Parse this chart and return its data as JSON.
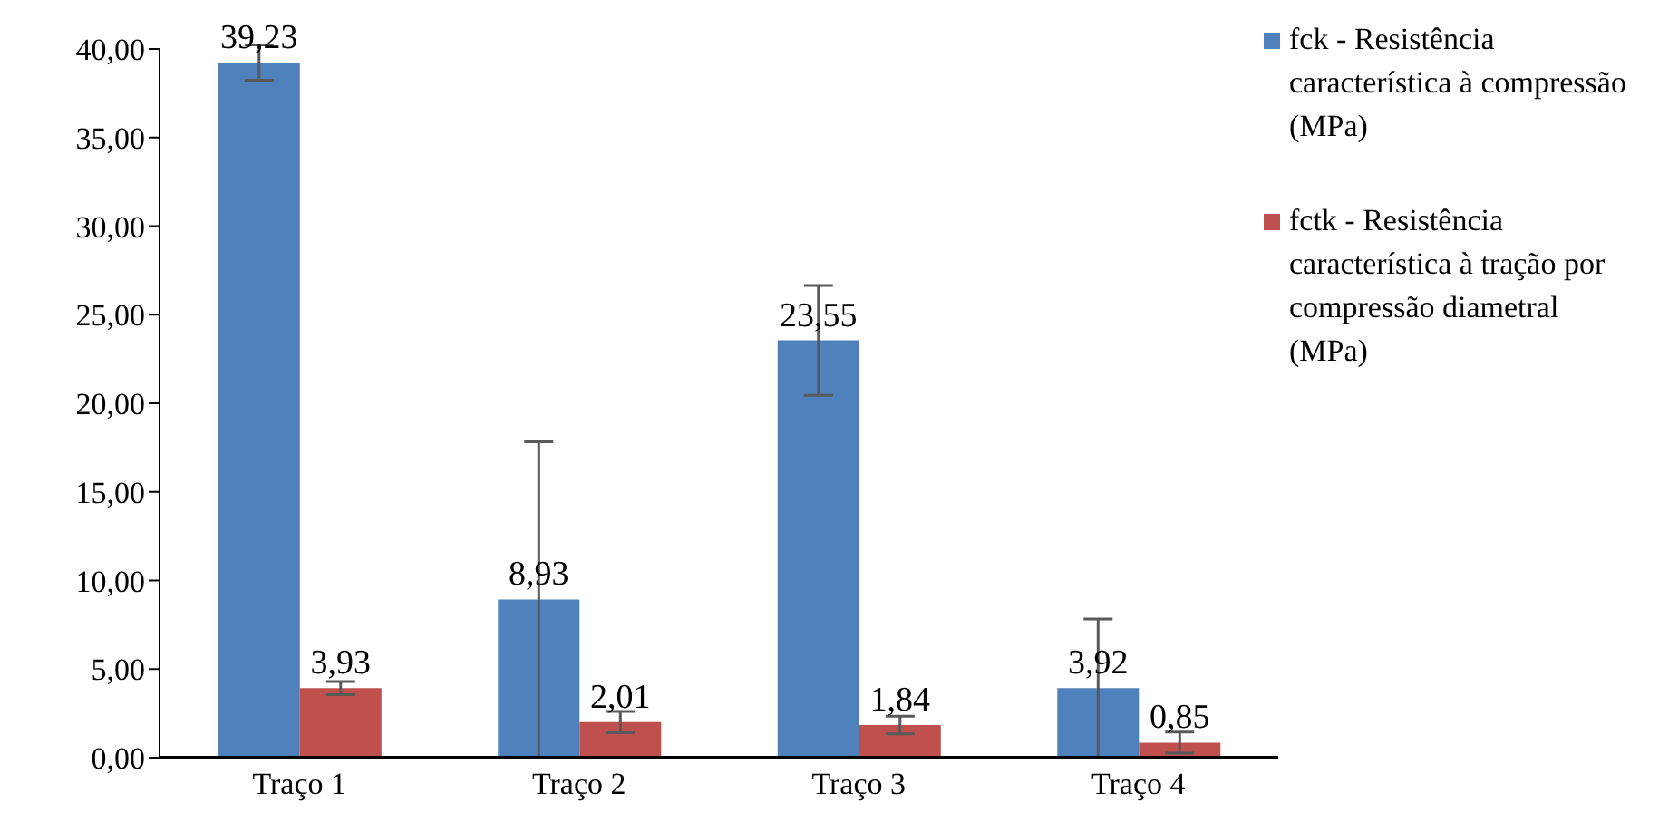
{
  "chart_data": {
    "type": "bar",
    "categories": [
      "Traço 1",
      "Traço 2",
      "Traço 3",
      "Traço 4"
    ],
    "series": [
      {
        "name": "fck - Resistência característica à compressão (MPa)",
        "color": "#4f81bd",
        "values": [
          39.23,
          8.93,
          23.55,
          3.92
        ],
        "value_labels": [
          "39,23",
          "8,93",
          "23,55",
          "3,92"
        ],
        "errors": [
          1.0,
          8.9,
          3.1,
          3.9
        ]
      },
      {
        "name": "fctk - Resistência característica à tração por compressão diametral (MPa)",
        "color": "#c0504d",
        "values": [
          3.93,
          2.01,
          1.84,
          0.85
        ],
        "value_labels": [
          "3,93",
          "2,01",
          "1,84",
          "0,85"
        ],
        "errors": [
          0.37,
          0.6,
          0.5,
          0.6
        ]
      }
    ],
    "ylim": [
      0,
      40
    ],
    "yticks": [
      {
        "value": 0,
        "label": "0,00"
      },
      {
        "value": 5,
        "label": "5,00"
      },
      {
        "value": 10,
        "label": "10,00"
      },
      {
        "value": 15,
        "label": "15,00"
      },
      {
        "value": 20,
        "label": "20,00"
      },
      {
        "value": 25,
        "label": "25,00"
      },
      {
        "value": 30,
        "label": "30,00"
      },
      {
        "value": 35,
        "label": "35,00"
      },
      {
        "value": 40,
        "label": "40,00"
      }
    ],
    "grid": false,
    "legend": "top right"
  }
}
